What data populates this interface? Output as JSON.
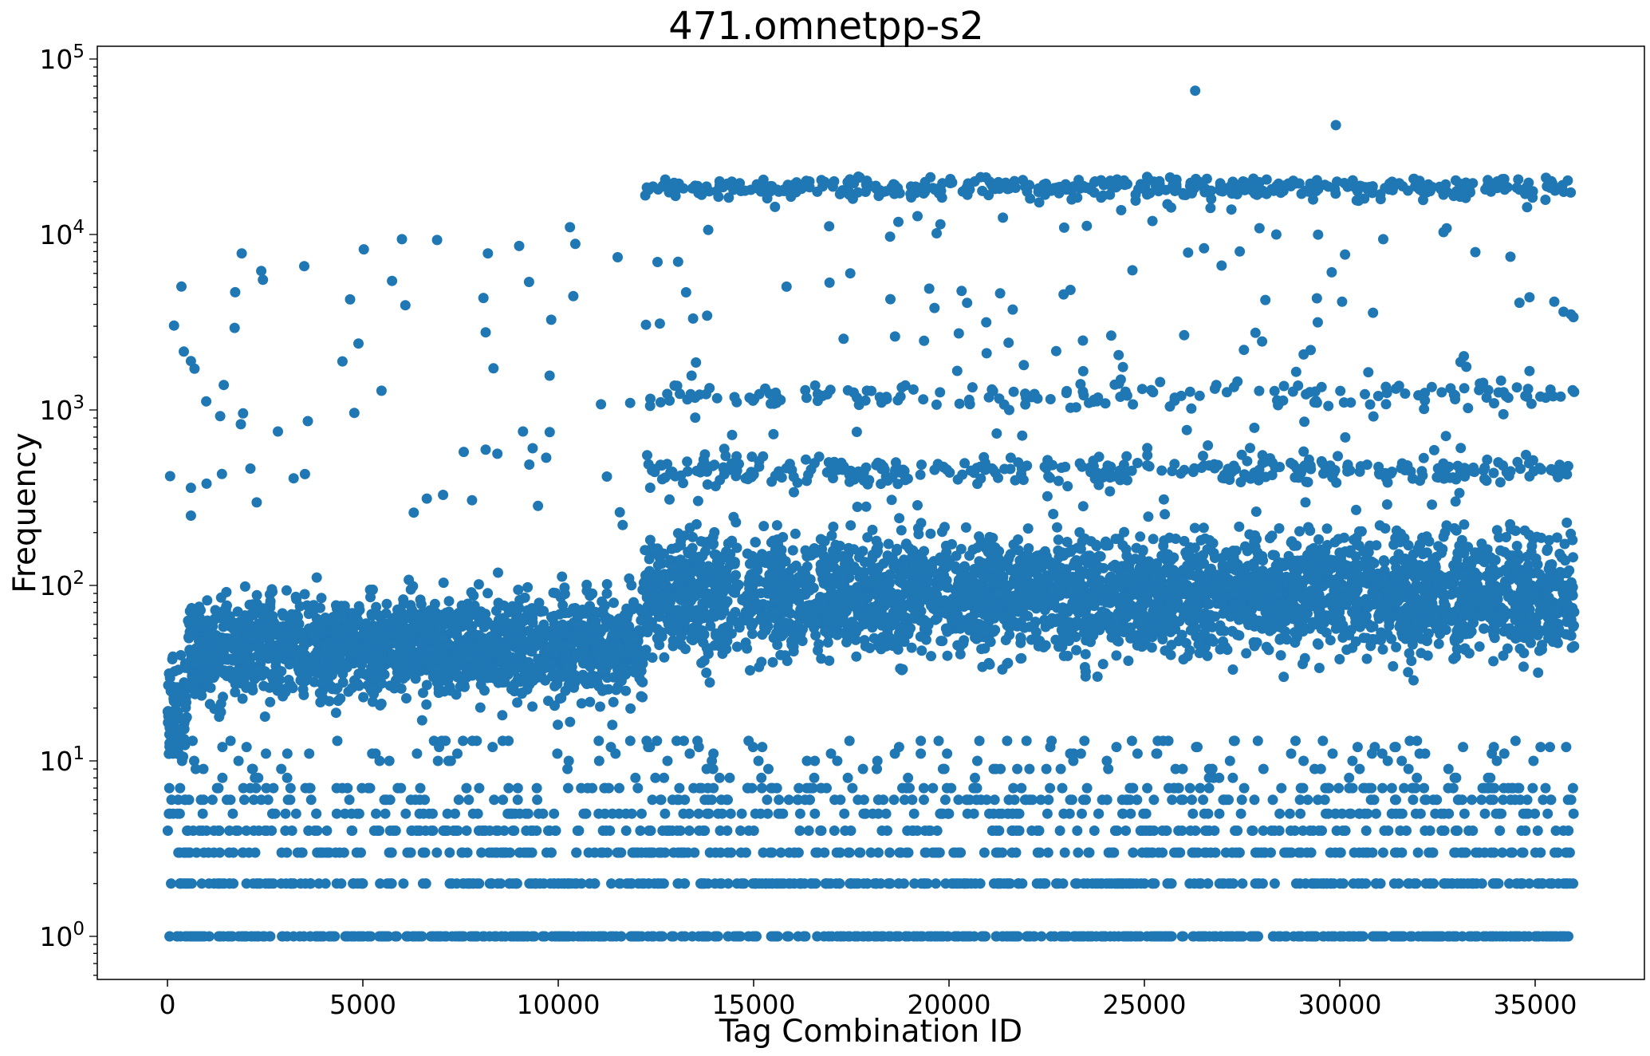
{
  "chart_data": {
    "type": "scatter",
    "title": "471.omnetpp-s2",
    "xlabel": "Tag Combination ID",
    "ylabel": "Frequency",
    "x_scale": "linear",
    "y_scale": "log",
    "xlim": [
      -1800,
      37800
    ],
    "ylim": [
      0.58,
      120000
    ],
    "x_ticks": [
      0,
      5000,
      10000,
      15000,
      20000,
      25000,
      30000,
      35000
    ],
    "y_ticks": [
      {
        "base": "10",
        "exp": "0",
        "value": 1
      },
      {
        "base": "10",
        "exp": "1",
        "value": 10
      },
      {
        "base": "10",
        "exp": "2",
        "value": 100
      },
      {
        "base": "10",
        "exp": "3",
        "value": 1000
      },
      {
        "base": "10",
        "exp": "4",
        "value": 10000
      },
      {
        "base": "10",
        "exp": "5",
        "value": 100000
      }
    ],
    "marker_color": "#1f77b4",
    "grid": false,
    "legend": "none",
    "series": [
      {
        "n_points": 36000,
        "x_range": [
          0,
          36000
        ],
        "outliers": [
          {
            "x": 26300,
            "y": 66000
          },
          {
            "x": 29900,
            "y": 42000
          },
          {
            "x": 10300,
            "y": 11000
          },
          {
            "x": 1900,
            "y": 7800
          },
          {
            "x": 6000,
            "y": 9400
          },
          {
            "x": 6900,
            "y": 9300
          },
          {
            "x": 9000,
            "y": 8600
          },
          {
            "x": 8200,
            "y": 7800
          },
          {
            "x": 3500,
            "y": 6600
          },
          {
            "x": 2400,
            "y": 6200
          },
          {
            "x": 600,
            "y": 1900
          },
          {
            "x": 600,
            "y": 360
          },
          {
            "x": 600,
            "y": 250
          }
        ]
      }
    ]
  }
}
